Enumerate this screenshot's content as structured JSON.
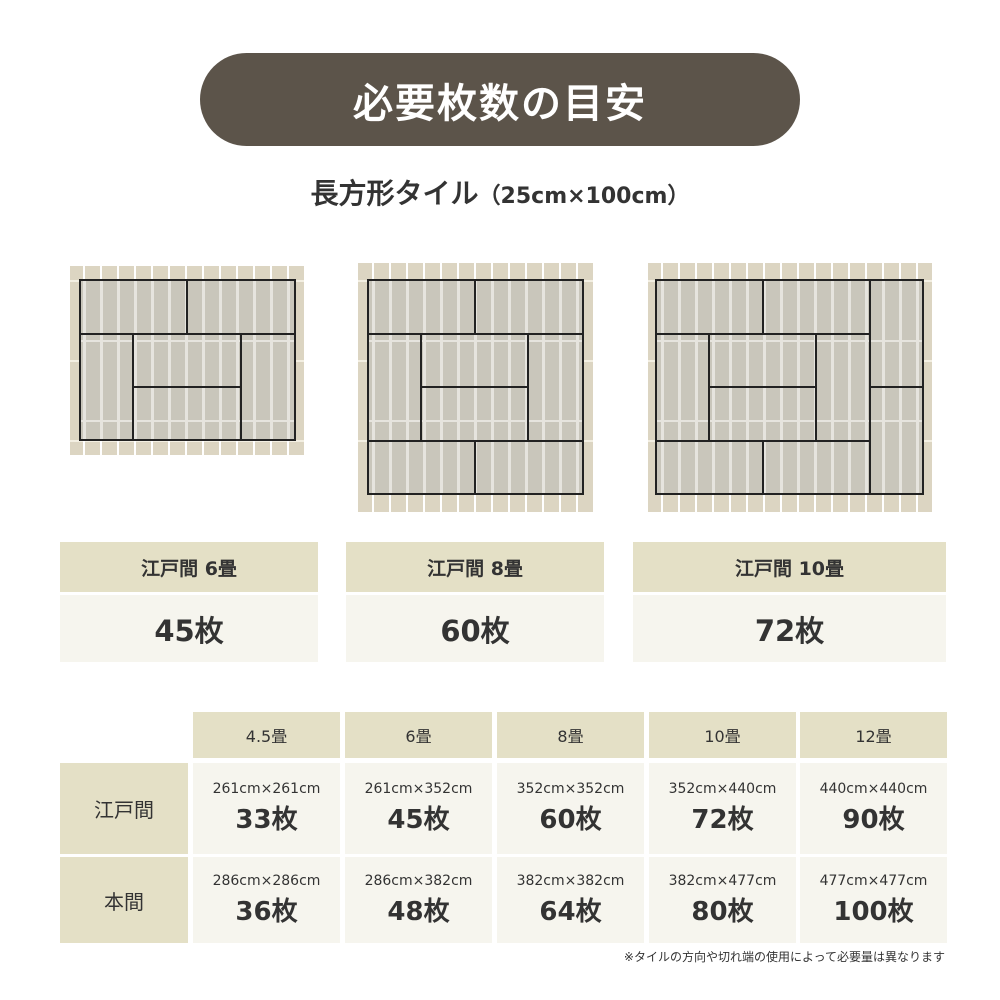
{
  "title": "必要枚数の目安",
  "subtitle": {
    "main": "長方形タイル",
    "size": "（25cm×100cm）"
  },
  "plans": [
    {
      "label": "江戸間 6畳",
      "count": "45枚"
    },
    {
      "label": "江戸間 8畳",
      "count": "60枚"
    },
    {
      "label": "江戸間 10畳",
      "count": "72枚"
    }
  ],
  "table": {
    "columns": [
      "4.5畳",
      "6畳",
      "8畳",
      "10畳",
      "12畳"
    ],
    "rows": [
      {
        "label": "江戸間",
        "cells": [
          {
            "dim": "261cm×261cm",
            "count": "33枚"
          },
          {
            "dim": "261cm×352cm",
            "count": "45枚"
          },
          {
            "dim": "352cm×352cm",
            "count": "60枚"
          },
          {
            "dim": "352cm×440cm",
            "count": "72枚"
          },
          {
            "dim": "440cm×440cm",
            "count": "90枚"
          }
        ]
      },
      {
        "label": "本間",
        "cells": [
          {
            "dim": "286cm×286cm",
            "count": "36枚"
          },
          {
            "dim": "286cm×382cm",
            "count": "48枚"
          },
          {
            "dim": "382cm×382cm",
            "count": "64枚"
          },
          {
            "dim": "382cm×477cm",
            "count": "80枚"
          },
          {
            "dim": "477cm×477cm",
            "count": "100枚"
          }
        ]
      }
    ]
  },
  "note": "※タイルの方向や切れ端の使用によって必要量は異なります",
  "colors": {
    "pill": "#5c544a",
    "header": "#e4e0c6",
    "cell": "#f6f5ee",
    "tile": "#dcd5c2",
    "mat": "#c9c6bb"
  }
}
